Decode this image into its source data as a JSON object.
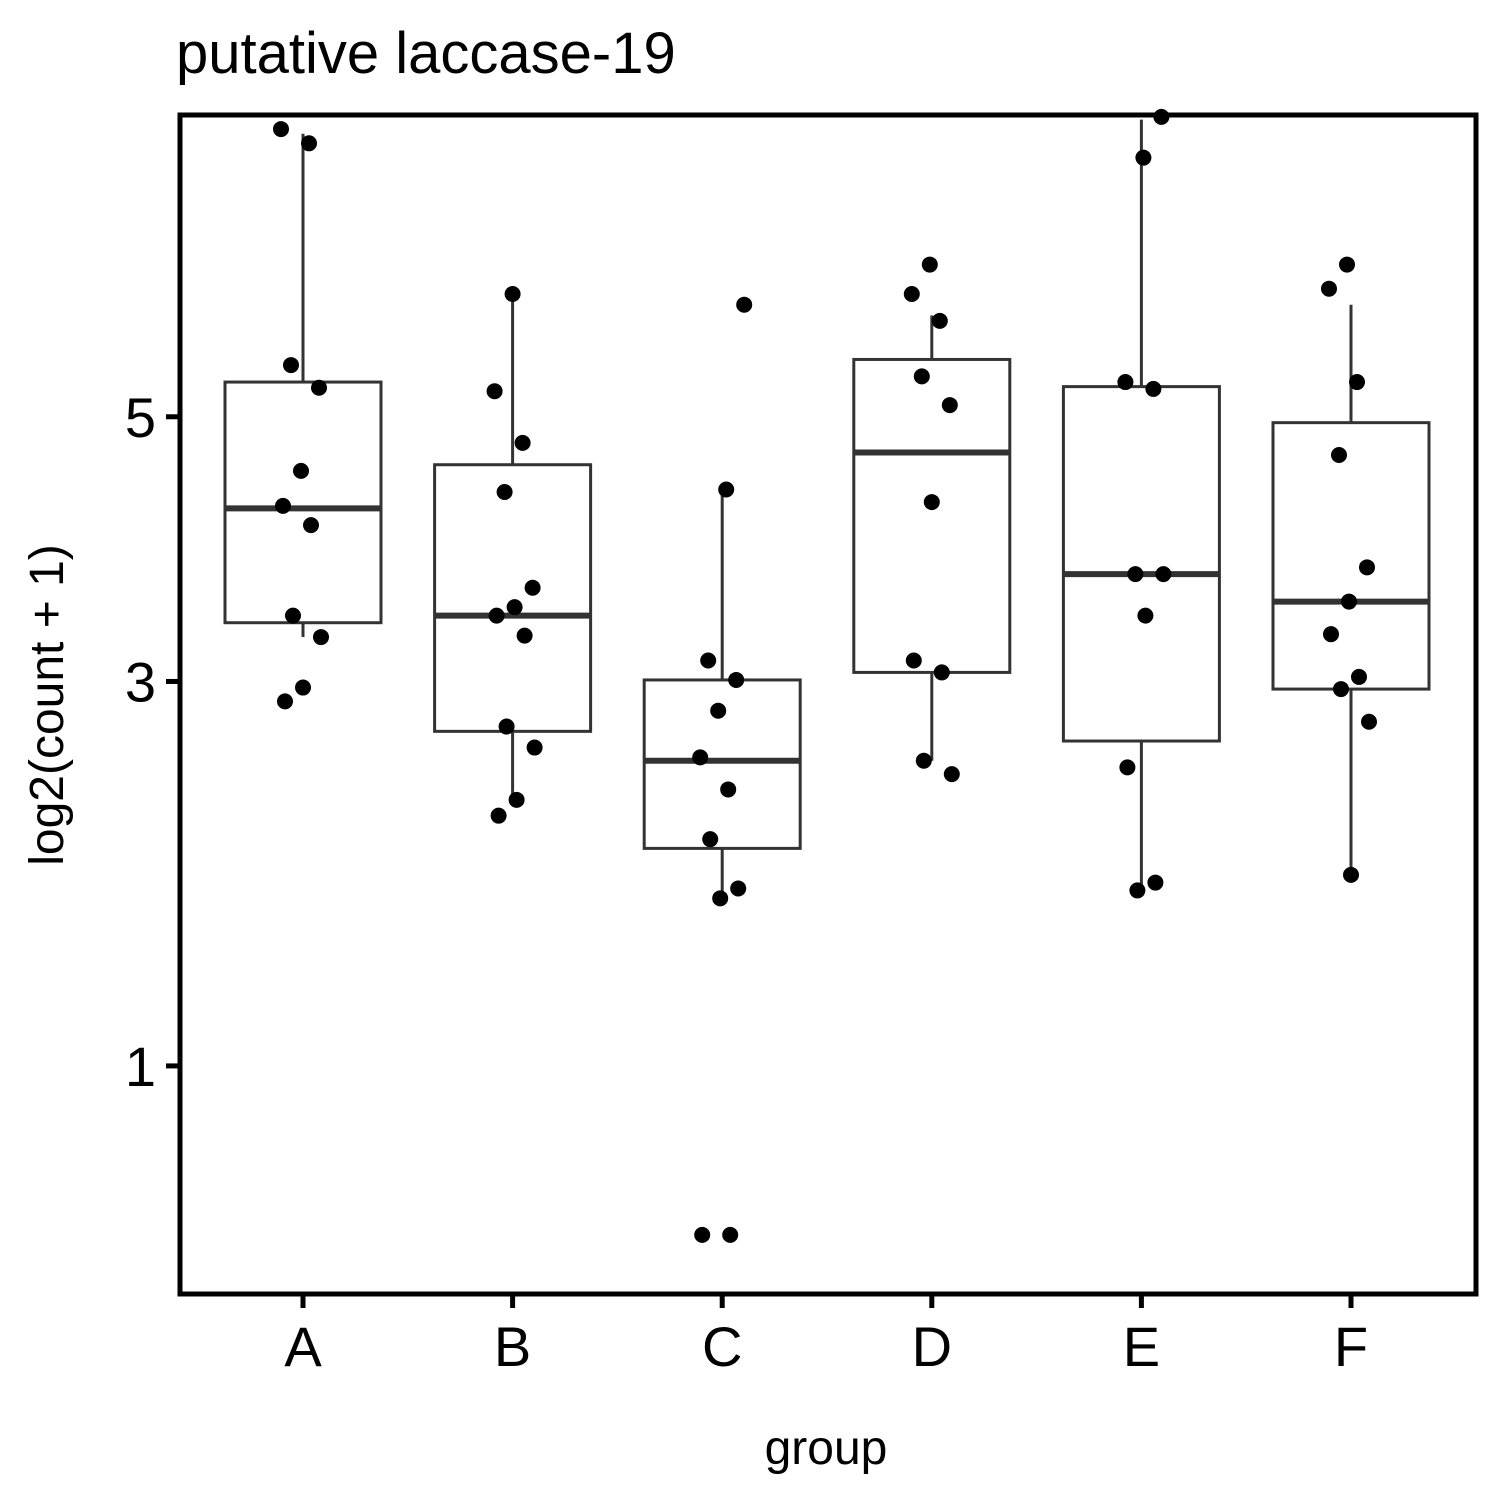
{
  "chart_data": {
    "type": "box",
    "title": "putative laccase-19",
    "xlabel": "group",
    "ylabel": "log2(count + 1)",
    "y_scale": "sqrt",
    "ylim": [
      0.32,
      7.9
    ],
    "y_ticks": [
      1,
      3,
      5
    ],
    "grid": false,
    "categories": [
      "A",
      "B",
      "C",
      "D",
      "E",
      "F"
    ],
    "boxes": [
      {
        "group": "A",
        "whisker_low": 3.3,
        "q1": 3.4,
        "median": 4.25,
        "q3": 5.3,
        "whisker_high": 7.7
      },
      {
        "group": "B",
        "whisker_low": 2.3,
        "q1": 2.68,
        "median": 3.45,
        "q3": 4.6,
        "whisker_high": 6.1
      },
      {
        "group": "C",
        "whisker_low": 1.75,
        "q1": 2.0,
        "median": 2.5,
        "q3": 3.01,
        "whisker_high": 4.4
      },
      {
        "group": "D",
        "whisker_low": 2.5,
        "q1": 3.06,
        "median": 4.7,
        "q3": 5.5,
        "whisker_high": 5.9
      },
      {
        "group": "E",
        "whisker_low": 1.8,
        "q1": 2.62,
        "median": 3.75,
        "q3": 5.26,
        "whisker_high": 7.85
      },
      {
        "group": "F",
        "whisker_low": 1.85,
        "q1": 2.95,
        "median": 3.55,
        "q3": 4.95,
        "whisker_high": 6.0
      }
    ],
    "points": [
      {
        "group": "A",
        "values": [
          7.75,
          7.6,
          5.45,
          5.25,
          4.55,
          4.27,
          4.12,
          3.45,
          3.3,
          2.96,
          2.87
        ]
      },
      {
        "group": "B",
        "values": [
          6.1,
          5.22,
          4.78,
          4.38,
          3.65,
          3.51,
          3.45,
          3.31,
          2.71,
          2.58,
          2.27,
          2.18
        ]
      },
      {
        "group": "C",
        "values": [
          6.0,
          4.4,
          3.14,
          3.01,
          2.81,
          2.52,
          2.33,
          2.05,
          1.79,
          1.74,
          0.46,
          0.46
        ]
      },
      {
        "group": "D",
        "values": [
          6.38,
          6.1,
          5.85,
          5.35,
          5.1,
          4.3,
          3.14,
          3.06,
          2.5,
          2.42
        ]
      },
      {
        "group": "E",
        "values": [
          7.88,
          7.45,
          5.3,
          5.24,
          3.75,
          3.75,
          3.45,
          2.46,
          1.82,
          1.78
        ]
      },
      {
        "group": "F",
        "values": [
          6.38,
          6.15,
          5.3,
          4.68,
          3.8,
          3.55,
          3.32,
          3.03,
          2.95,
          2.74,
          1.86
        ]
      }
    ]
  }
}
